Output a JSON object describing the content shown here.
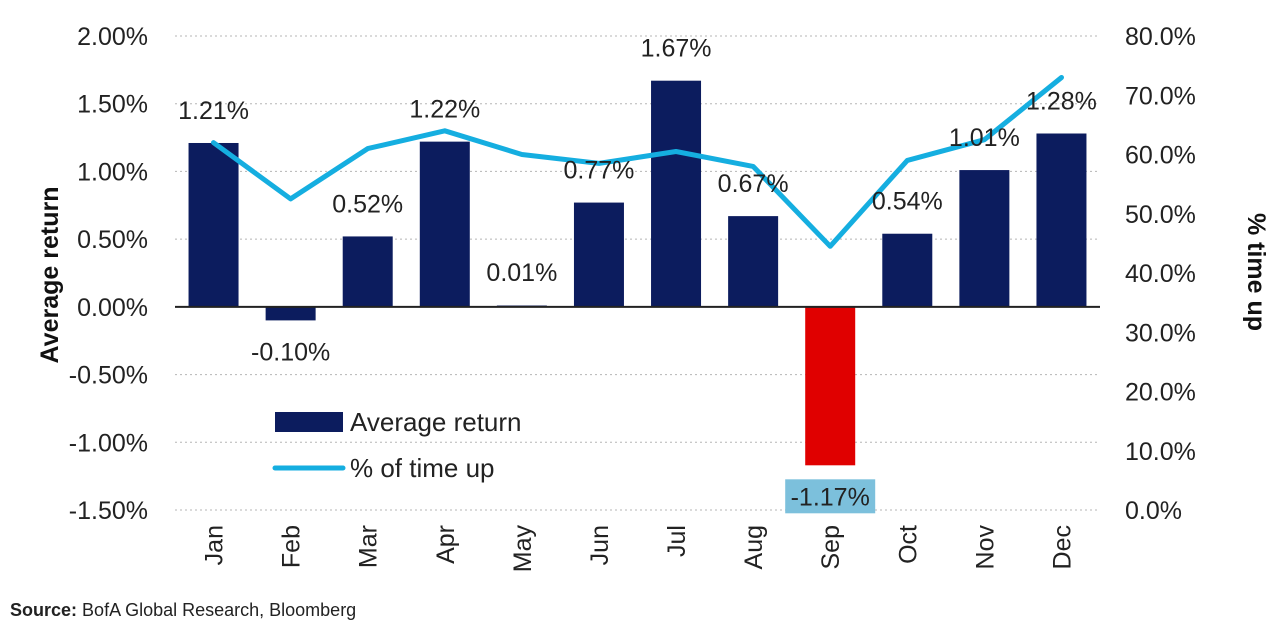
{
  "colors": {
    "bar": "#0c1c5e",
    "bar_negative_highlight": "#e00000",
    "line": "#15aee0",
    "label_highlight_bg": "#7cc0dc",
    "grid": "#b5b5b5",
    "axis": "#222222"
  },
  "source": {
    "label": "Source:",
    "text": "BofA Global Research, Bloomberg"
  },
  "chart_data": {
    "type": "bar+line",
    "title": "",
    "categories": [
      "Jan",
      "Feb",
      "Mar",
      "Apr",
      "May",
      "Jun",
      "Jul",
      "Aug",
      "Sep",
      "Oct",
      "Nov",
      "Dec"
    ],
    "series": [
      {
        "name": "Average return",
        "type": "bar",
        "axis": "left",
        "values": [
          1.21,
          -0.1,
          0.52,
          1.22,
          0.01,
          0.77,
          1.67,
          0.67,
          -1.17,
          0.54,
          1.01,
          1.28
        ],
        "labels": [
          "1.21%",
          "-0.10%",
          "0.52%",
          "1.22%",
          "0.01%",
          "0.77%",
          "1.67%",
          "0.67%",
          "-1.17%",
          "0.54%",
          "1.01%",
          "1.28%"
        ],
        "highlight_category": "Sep"
      },
      {
        "name": "% of time up",
        "type": "line",
        "axis": "right",
        "values": [
          62,
          52.5,
          61,
          64,
          60,
          58.5,
          60.5,
          58,
          44.5,
          59,
          62.5,
          73
        ]
      }
    ],
    "y_left": {
      "label": "Average return",
      "ylim": [
        -1.5,
        2.0
      ],
      "ticks": [
        2.0,
        1.5,
        1.0,
        0.5,
        0.0,
        -0.5,
        -1.0,
        -1.5
      ],
      "tick_labels": [
        "2.00%",
        "1.50%",
        "1.00%",
        "0.50%",
        "0.00%",
        "-0.50%",
        "-1.00%",
        "-1.50%"
      ]
    },
    "y_right": {
      "label": "% time up",
      "ylim": [
        0,
        80
      ],
      "ticks": [
        80,
        70,
        60,
        50,
        40,
        30,
        20,
        10,
        0
      ],
      "tick_labels": [
        "80.0%",
        "70.0%",
        "60.0%",
        "50.0%",
        "40.0%",
        "30.0%",
        "20.0%",
        "10.0%",
        "0.0%"
      ]
    },
    "grid": true,
    "legend": {
      "position": "bottom-left",
      "entries": [
        "Average return",
        "% of time up"
      ]
    }
  }
}
